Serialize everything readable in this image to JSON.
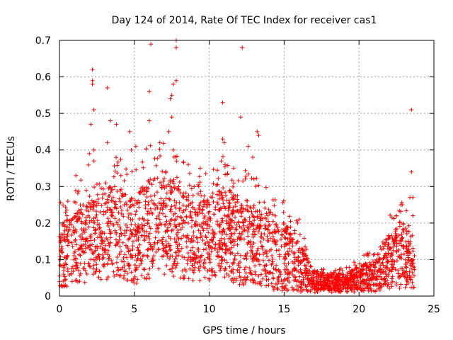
{
  "chart_data": {
    "type": "scatter",
    "title": "Day 124 of 2014, Rate Of TEC Index for receiver cas1",
    "xlabel": "GPS time / hours",
    "ylabel": "ROTI / TECUs",
    "xlim": [
      0,
      25
    ],
    "ylim": [
      0,
      0.7
    ],
    "xticks": [
      0,
      5,
      10,
      15,
      20,
      25
    ],
    "xtick_labels": [
      "0",
      "5",
      "10",
      "15",
      "20",
      "25"
    ],
    "yticks": [
      0,
      0.1,
      0.2,
      0.3,
      0.4,
      0.5,
      0.6,
      0.7
    ],
    "ytick_labels": [
      "0",
      "0.1",
      "0.2",
      "0.3",
      "0.4",
      "0.5",
      "0.6",
      "0.7"
    ],
    "grid": true,
    "marker": "+",
    "color": "#ff0000",
    "density_profile": [
      {
        "x": 0.0,
        "low": 0.02,
        "high": 0.2
      },
      {
        "x": 1.0,
        "low": 0.03,
        "high": 0.22
      },
      {
        "x": 2.0,
        "low": 0.04,
        "high": 0.28
      },
      {
        "x": 3.0,
        "low": 0.04,
        "high": 0.3
      },
      {
        "x": 4.0,
        "low": 0.05,
        "high": 0.3
      },
      {
        "x": 5.0,
        "low": 0.03,
        "high": 0.27
      },
      {
        "x": 6.0,
        "low": 0.04,
        "high": 0.32
      },
      {
        "x": 7.0,
        "low": 0.06,
        "high": 0.35
      },
      {
        "x": 8.0,
        "low": 0.05,
        "high": 0.3
      },
      {
        "x": 9.0,
        "low": 0.04,
        "high": 0.25
      },
      {
        "x": 10.0,
        "low": 0.04,
        "high": 0.27
      },
      {
        "x": 11.0,
        "low": 0.04,
        "high": 0.3
      },
      {
        "x": 12.0,
        "low": 0.03,
        "high": 0.28
      },
      {
        "x": 13.0,
        "low": 0.02,
        "high": 0.25
      },
      {
        "x": 14.0,
        "low": 0.02,
        "high": 0.22
      },
      {
        "x": 15.0,
        "low": 0.01,
        "high": 0.2
      },
      {
        "x": 16.0,
        "low": 0.01,
        "high": 0.15
      },
      {
        "x": 17.0,
        "low": 0.01,
        "high": 0.07
      },
      {
        "x": 18.0,
        "low": 0.01,
        "high": 0.06
      },
      {
        "x": 19.0,
        "low": 0.01,
        "high": 0.06
      },
      {
        "x": 20.0,
        "low": 0.01,
        "high": 0.08
      },
      {
        "x": 21.0,
        "low": 0.01,
        "high": 0.1
      },
      {
        "x": 22.0,
        "low": 0.02,
        "high": 0.17
      },
      {
        "x": 23.0,
        "low": 0.02,
        "high": 0.2
      },
      {
        "x": 23.7,
        "low": 0.02,
        "high": 0.12
      }
    ],
    "outliers": [
      {
        "x": 6.1,
        "y": 0.69
      },
      {
        "x": 7.8,
        "y": 0.7
      },
      {
        "x": 7.8,
        "y": 0.68
      },
      {
        "x": 12.2,
        "y": 0.68
      },
      {
        "x": 2.2,
        "y": 0.62
      },
      {
        "x": 2.2,
        "y": 0.59
      },
      {
        "x": 2.2,
        "y": 0.58
      },
      {
        "x": 3.2,
        "y": 0.57
      },
      {
        "x": 6.0,
        "y": 0.56
      },
      {
        "x": 7.6,
        "y": 0.58
      },
      {
        "x": 7.8,
        "y": 0.59
      },
      {
        "x": 7.5,
        "y": 0.55
      },
      {
        "x": 7.4,
        "y": 0.54
      },
      {
        "x": 2.3,
        "y": 0.51
      },
      {
        "x": 10.9,
        "y": 0.53
      },
      {
        "x": 23.5,
        "y": 0.51
      },
      {
        "x": 2.1,
        "y": 0.47
      },
      {
        "x": 3.4,
        "y": 0.48
      },
      {
        "x": 3.8,
        "y": 0.47
      },
      {
        "x": 6.0,
        "y": 0.48
      },
      {
        "x": 7.5,
        "y": 0.49
      },
      {
        "x": 12.1,
        "y": 0.49
      },
      {
        "x": 4.7,
        "y": 0.45
      },
      {
        "x": 7.3,
        "y": 0.45
      },
      {
        "x": 13.2,
        "y": 0.45
      },
      {
        "x": 13.3,
        "y": 0.44
      },
      {
        "x": 10.9,
        "y": 0.43
      },
      {
        "x": 11.0,
        "y": 0.42
      },
      {
        "x": 3.2,
        "y": 0.42
      },
      {
        "x": 2.3,
        "y": 0.4
      },
      {
        "x": 2.0,
        "y": 0.39
      },
      {
        "x": 5.1,
        "y": 0.41
      },
      {
        "x": 4.8,
        "y": 0.4
      },
      {
        "x": 6.7,
        "y": 0.42
      },
      {
        "x": 7.6,
        "y": 0.4
      },
      {
        "x": 12.6,
        "y": 0.41
      },
      {
        "x": 10.8,
        "y": 0.37
      },
      {
        "x": 2.3,
        "y": 0.37
      },
      {
        "x": 8.6,
        "y": 0.36
      },
      {
        "x": 12.9,
        "y": 0.38
      },
      {
        "x": 23.5,
        "y": 0.34
      },
      {
        "x": 23.4,
        "y": 0.27
      },
      {
        "x": 23.6,
        "y": 0.27
      },
      {
        "x": 23.6,
        "y": 0.22
      },
      {
        "x": 1.1,
        "y": 0.33
      },
      {
        "x": 0.5,
        "y": 0.22
      },
      {
        "x": 22.8,
        "y": 0.25
      },
      {
        "x": 22.5,
        "y": 0.22
      },
      {
        "x": 15.9,
        "y": 0.2
      },
      {
        "x": 16.0,
        "y": 0.21
      },
      {
        "x": 14.1,
        "y": 0.23
      },
      {
        "x": 9.4,
        "y": 0.35
      },
      {
        "x": 9.3,
        "y": 0.3
      },
      {
        "x": 4.1,
        "y": 0.33
      }
    ]
  }
}
